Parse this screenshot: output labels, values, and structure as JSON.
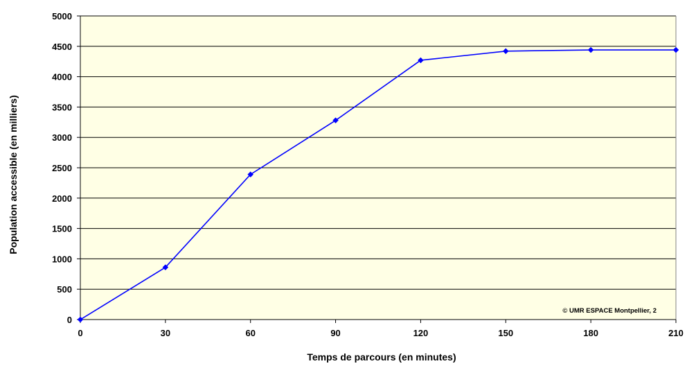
{
  "chart_data": {
    "type": "line",
    "title": "",
    "xlabel": "Temps de parcours (en minutes)",
    "ylabel": "Population accessible (en milliers)",
    "x": [
      0,
      30,
      60,
      90,
      120,
      150,
      180,
      210
    ],
    "series": [
      {
        "values": [
          0,
          860,
          2390,
          3280,
          4270,
          4420,
          4440,
          4440
        ],
        "color": "#0000ff"
      }
    ],
    "xlim": [
      0,
      210
    ],
    "ylim": [
      0,
      5000
    ],
    "xticks": [
      0,
      30,
      60,
      90,
      120,
      150,
      180,
      210
    ],
    "yticks": [
      0,
      500,
      1000,
      1500,
      2000,
      2500,
      3000,
      3500,
      4000,
      4500,
      5000
    ],
    "grid": "horizontal",
    "legend": "none",
    "plot_background": "#ffffe5",
    "annotation": "© UMR ESPACE Montpellier, 2"
  }
}
